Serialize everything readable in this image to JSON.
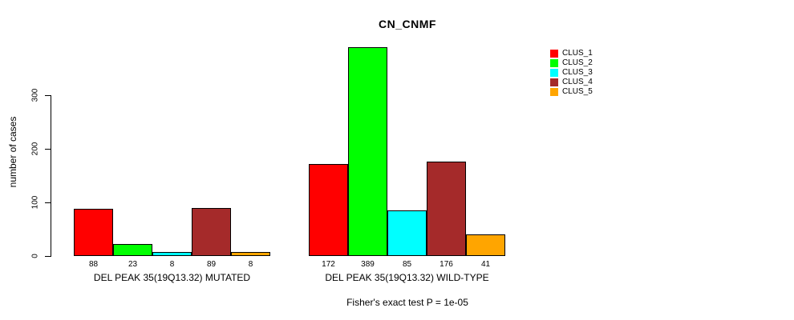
{
  "chart_data": {
    "type": "bar",
    "title": "CN_CNMF",
    "ylabel": "number of cases",
    "xlabel": "",
    "yticks": [
      0,
      100,
      200,
      300
    ],
    "ylim": [
      0,
      390
    ],
    "grid": false,
    "legend_position": "right",
    "value_labels_shown": true,
    "groups": [
      {
        "label": "DEL PEAK 35(19Q13.32) MUTATED"
      },
      {
        "label": "DEL PEAK 35(19Q13.32) WILD-TYPE"
      }
    ],
    "series": [
      {
        "name": "CLUS_1",
        "color": "#FF0000",
        "values": [
          88,
          172
        ]
      },
      {
        "name": "CLUS_2",
        "color": "#00FF00",
        "values": [
          23,
          389
        ]
      },
      {
        "name": "CLUS_3",
        "color": "#00FFFF",
        "values": [
          8,
          85
        ]
      },
      {
        "name": "CLUS_4",
        "color": "#A52A2A",
        "values": [
          89,
          176
        ]
      },
      {
        "name": "CLUS_5",
        "color": "#FFA500",
        "values": [
          8,
          41
        ]
      }
    ],
    "annotation": "Fisher's exact test P = 1e-05"
  }
}
